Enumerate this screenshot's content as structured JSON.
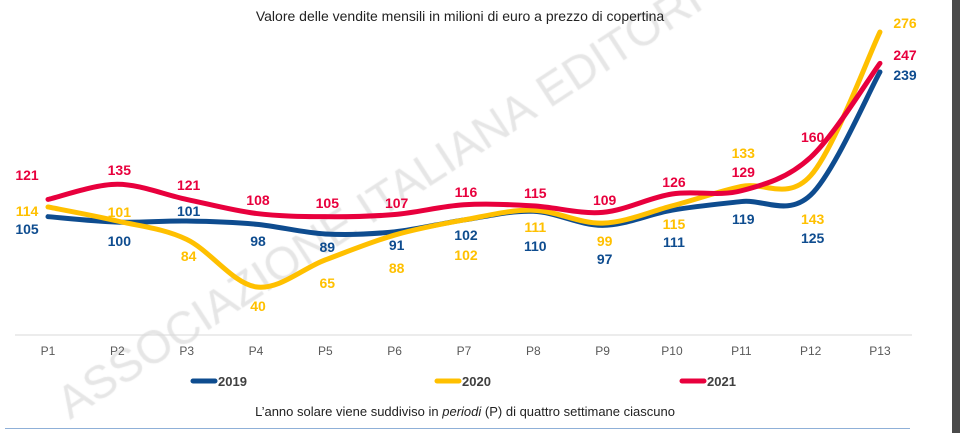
{
  "chart_data": {
    "type": "line",
    "title": "Valore delle vendite mensili in milioni di euro a prezzo di copertina",
    "categories": [
      "P1",
      "P2",
      "P3",
      "P4",
      "P5",
      "P6",
      "P7",
      "P8",
      "P9",
      "P10",
      "P11",
      "P12",
      "P13"
    ],
    "series": [
      {
        "name": "2019",
        "color": "#0e4c8f",
        "values": [
          105,
          100,
          101,
          98,
          89,
          91,
          102,
          110,
          97,
          111,
          119,
          125,
          239
        ]
      },
      {
        "name": "2020",
        "color": "#ffc000",
        "values": [
          114,
          101,
          84,
          40,
          65,
          88,
          102,
          111,
          99,
          115,
          133,
          143,
          276
        ]
      },
      {
        "name": "2021",
        "color": "#e8003d",
        "values": [
          121,
          135,
          121,
          108,
          105,
          107,
          116,
          115,
          109,
          126,
          129,
          160,
          247
        ]
      }
    ],
    "data_labels": true,
    "grid": false,
    "legend_position": "bottom",
    "footnote": {
      "pre": "L’anno solare viene suddiviso in ",
      "em": "periodi",
      "post": " (P) di quattro settimane ciascuno"
    },
    "watermark": "ASSOCIAZIONE ITALIANA EDITORI"
  }
}
